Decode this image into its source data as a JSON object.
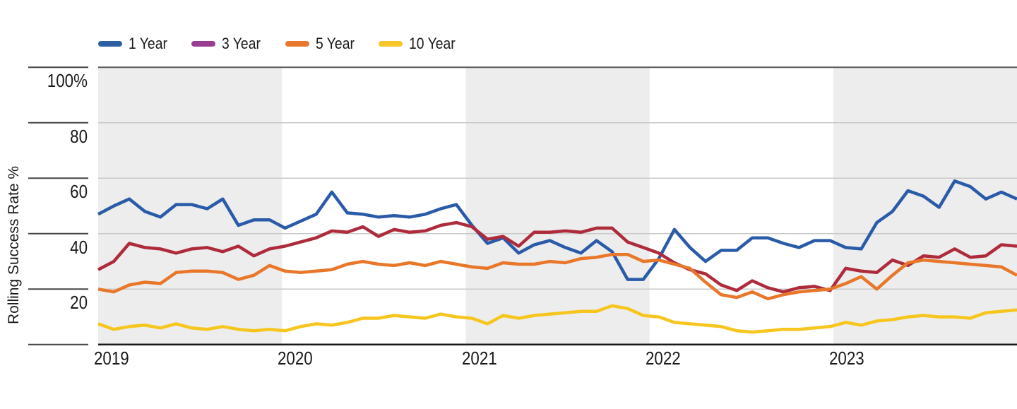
{
  "page": {
    "background": "#FFFFFF"
  },
  "chart_data": {
    "type": "line",
    "title": "",
    "ylabel": "Rolling Success Rate %",
    "xlabel": "",
    "x_axis": {
      "tick_labels": [
        "2019",
        "2020",
        "2021",
        "2022",
        "2023"
      ],
      "unit": "year",
      "points_per_year": 12
    },
    "y_axis": {
      "tick_labels": [
        "100%",
        "80",
        "60",
        "40",
        "20"
      ],
      "tick_values": [
        100,
        80,
        60,
        40,
        20
      ],
      "ylim": [
        0,
        100
      ]
    },
    "grid": "on",
    "legend_position": "top-left",
    "shaded_year_bands": [
      "2019",
      "2021",
      "2023"
    ],
    "band_color": "#EDEDED",
    "gridline_color": "#C9C9C9",
    "top_border_color": "#58595B",
    "bottom_axis_color": "#1A1A1A",
    "tick_segment_color": "#454547",
    "series": [
      {
        "name": "1 Year",
        "line_color": "#2A5BA8",
        "legend_swatch_color": "#2E5FA3",
        "values": [
          47,
          50,
          52.5,
          48,
          46,
          50.5,
          50.5,
          49,
          52.5,
          43,
          45,
          45,
          42,
          44.5,
          47,
          55,
          47.5,
          47,
          46,
          46.5,
          46,
          47,
          49,
          50.5,
          43,
          36.5,
          38.5,
          33,
          36,
          37.5,
          35,
          33,
          37.5,
          33.5,
          23.5,
          23.5,
          31,
          41.5,
          35,
          30,
          34,
          34,
          38.5,
          38.5,
          36.5,
          35,
          37.5,
          37.5,
          35,
          34.5,
          44,
          48,
          55.5,
          53.5,
          49.5,
          59,
          57,
          52.5,
          55,
          52.5
        ]
      },
      {
        "name": "3 Year",
        "line_color": "#AE2B3C",
        "legend_swatch_color": "#9A3D93",
        "values": [
          27,
          30,
          36.5,
          35,
          34.5,
          33,
          34.5,
          35,
          33.5,
          35.5,
          32,
          34.5,
          35.5,
          37,
          38.5,
          41,
          40.5,
          42.5,
          39,
          41.5,
          40.5,
          41,
          43,
          44,
          42.5,
          38,
          39,
          35.5,
          40.5,
          40.5,
          41,
          40.5,
          42,
          42,
          37,
          35,
          33,
          29.5,
          27,
          25.5,
          21.5,
          19.5,
          23,
          20.5,
          19,
          20.5,
          21,
          19.5,
          27.5,
          26.5,
          26,
          30.5,
          28.5,
          32,
          31.5,
          34.5,
          31.5,
          32,
          36,
          35.5
        ]
      },
      {
        "name": "5 Year",
        "line_color": "#E8772A",
        "legend_swatch_color": "#E8782E",
        "values": [
          20,
          19,
          21.5,
          22.5,
          22,
          26,
          26.5,
          26.5,
          26,
          23.5,
          25,
          28.5,
          26.5,
          26,
          26.5,
          27,
          29,
          30,
          29,
          28.5,
          29.5,
          28.5,
          30,
          29,
          28,
          27.5,
          29.5,
          29,
          29,
          30,
          29.5,
          31,
          31.5,
          32.5,
          32.5,
          30,
          30.5,
          29,
          27.5,
          22.5,
          18,
          17,
          19,
          16.5,
          18,
          19,
          19.5,
          20,
          22,
          24.5,
          20,
          25,
          29.5,
          30.5,
          30,
          29.5,
          29,
          28.5,
          28,
          25
        ]
      },
      {
        "name": "10 Year",
        "line_color": "#F6C61E",
        "legend_swatch_color": "#F7C62B",
        "values": [
          7.5,
          5.5,
          6.5,
          7,
          6,
          7.5,
          6,
          5.5,
          6.5,
          5.5,
          5,
          5.5,
          5,
          6.5,
          7.5,
          7,
          8,
          9.5,
          9.5,
          10.5,
          10,
          9.5,
          11,
          10,
          9.5,
          7.5,
          10.5,
          9.5,
          10.5,
          11,
          11.5,
          12,
          12,
          14,
          13,
          10.5,
          10,
          8,
          7.5,
          7,
          6.5,
          5,
          4.5,
          5,
          5.5,
          5.5,
          6,
          6.5,
          8,
          7,
          8.5,
          9,
          10,
          10.5,
          10,
          10,
          9.5,
          11.5,
          12,
          12.5
        ]
      }
    ]
  }
}
